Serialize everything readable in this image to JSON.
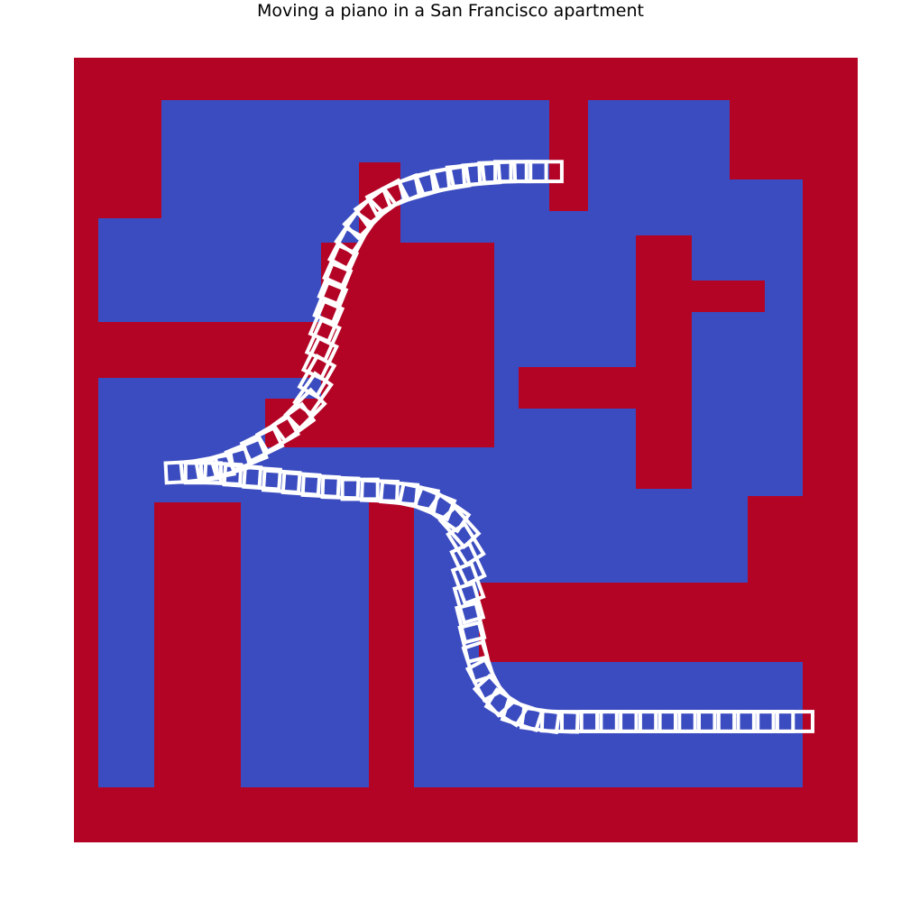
{
  "title": "Moving a piano in a San Francisco apartment",
  "colors": {
    "wall": "#b40426",
    "free": "#3b4cc0",
    "piano": "#ffffff"
  },
  "chart_data": {
    "type": "heatmap",
    "title": "Moving a piano in a San Francisco apartment",
    "xlim": [
      0,
      100
    ],
    "ylim": [
      0,
      100
    ],
    "axes_visible": false,
    "grid": false,
    "legend": "none",
    "walls": [
      [
        0,
        0,
        100,
        100
      ]
    ],
    "free_regions": [
      [
        3,
        7,
        93,
        75
      ],
      [
        11,
        75,
        60,
        14
      ],
      [
        65,
        75,
        17,
        14
      ],
      [
        93,
        58,
        0,
        0
      ]
    ],
    "piano_size": [
      4.5,
      2.5
    ],
    "piano_path": [
      [
        60,
        14.5,
        0
      ],
      [
        58,
        14.5,
        0
      ],
      [
        56,
        14.5,
        0
      ],
      [
        54,
        14.6,
        -2
      ],
      [
        52,
        14.8,
        -4
      ],
      [
        50,
        15.0,
        -6
      ],
      [
        48,
        15.4,
        -9
      ],
      [
        46,
        15.8,
        -12
      ],
      [
        44,
        16.4,
        -16
      ],
      [
        42,
        17.0,
        -22
      ],
      [
        40,
        17.8,
        -28
      ],
      [
        38.5,
        19.0,
        -36
      ],
      [
        37.0,
        20.5,
        -45
      ],
      [
        35.8,
        22.3,
        -55
      ],
      [
        34.8,
        24.3,
        -62
      ],
      [
        34.0,
        26.5,
        -66
      ],
      [
        33.3,
        28.8,
        -68
      ],
      [
        32.7,
        31.2,
        -68
      ],
      [
        32.2,
        33.6,
        -67
      ],
      [
        31.8,
        36.0,
        -66
      ],
      [
        31.4,
        38.3,
        -64
      ],
      [
        31.0,
        40.6,
        -60
      ],
      [
        30.5,
        42.8,
        -55
      ],
      [
        29.5,
        44.8,
        -45
      ],
      [
        28.0,
        46.5,
        -36
      ],
      [
        26.0,
        48.0,
        -30
      ],
      [
        24.0,
        49.3,
        -26
      ],
      [
        22.0,
        50.6,
        -22
      ],
      [
        20.0,
        51.6,
        -16
      ],
      [
        18.0,
        52.2,
        -10
      ],
      [
        16.0,
        52.6,
        -6
      ],
      [
        14.0,
        52.8,
        -3
      ],
      [
        16.5,
        52.9,
        0
      ],
      [
        19.0,
        53.0,
        3
      ],
      [
        21.5,
        53.3,
        4
      ],
      [
        24.0,
        53.6,
        4
      ],
      [
        26.5,
        54.0,
        4
      ],
      [
        29.0,
        54.3,
        4
      ],
      [
        31.5,
        54.6,
        3
      ],
      [
        34.0,
        54.8,
        2
      ],
      [
        36.5,
        55.0,
        0
      ],
      [
        39.0,
        55.2,
        2
      ],
      [
        41.5,
        55.5,
        5
      ],
      [
        44.0,
        56.0,
        12
      ],
      [
        46.0,
        56.8,
        22
      ],
      [
        47.8,
        58.0,
        35
      ],
      [
        49.2,
        59.8,
        48
      ],
      [
        50.0,
        62.0,
        58
      ],
      [
        50.3,
        64.5,
        65
      ],
      [
        50.3,
        67.0,
        70
      ],
      [
        50.4,
        69.5,
        74
      ],
      [
        50.6,
        72.0,
        76
      ],
      [
        51.0,
        74.5,
        76
      ],
      [
        51.6,
        77.0,
        72
      ],
      [
        52.4,
        79.3,
        62
      ],
      [
        53.6,
        81.3,
        48
      ],
      [
        55.2,
        82.8,
        32
      ],
      [
        57.2,
        83.8,
        18
      ],
      [
        59.5,
        84.4,
        8
      ],
      [
        62.0,
        84.6,
        2
      ],
      [
        64.5,
        84.6,
        0
      ],
      [
        67.0,
        84.6,
        0
      ],
      [
        69.5,
        84.6,
        0
      ],
      [
        72.0,
        84.6,
        0
      ],
      [
        74.5,
        84.6,
        0
      ],
      [
        77.0,
        84.6,
        0
      ],
      [
        79.5,
        84.6,
        0
      ],
      [
        82.0,
        84.6,
        0
      ],
      [
        84.5,
        84.6,
        0
      ],
      [
        87.0,
        84.6,
        0
      ],
      [
        89.5,
        84.6,
        0
      ],
      [
        92.0,
        84.6,
        0
      ]
    ]
  }
}
